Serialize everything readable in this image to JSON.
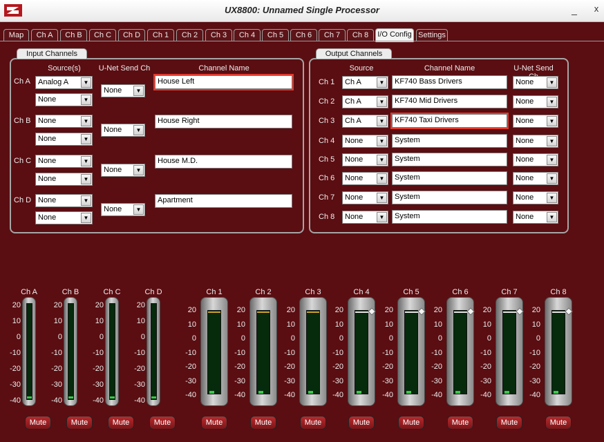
{
  "window": {
    "title": "UX8800: Unnamed Single Processor",
    "minimize": "_",
    "close": "x"
  },
  "tabs": [
    "Map",
    "Ch A",
    "Ch B",
    "Ch C",
    "Ch D",
    "Ch 1",
    "Ch 2",
    "Ch 3",
    "Ch 4",
    "Ch 5",
    "Ch 6",
    "Ch 7",
    "Ch 8",
    "I/O Config",
    "Settings"
  ],
  "active_tab": "I/O Config",
  "input_channels": {
    "label": "Input Channels",
    "headers": {
      "sources": "Source(s)",
      "unet": "U-Net Send Ch",
      "name": "Channel Name"
    },
    "rows": [
      {
        "ch": "Ch A",
        "source1": "Analog A",
        "source2": "None",
        "unet": "None",
        "name": "House Left"
      },
      {
        "ch": "Ch B",
        "source1": "None",
        "source2": "None",
        "unet": "None",
        "name": "House Right"
      },
      {
        "ch": "Ch C",
        "source1": "None",
        "source2": "None",
        "unet": "None",
        "name": "House M.D."
      },
      {
        "ch": "Ch D",
        "source1": "None",
        "source2": "None",
        "unet": "None",
        "name": "Apartment"
      }
    ]
  },
  "output_channels": {
    "label": "Output Channels",
    "headers": {
      "source": "Source",
      "name": "Channel Name",
      "unet": "U-Net Send Ch"
    },
    "rows": [
      {
        "ch": "Ch 1",
        "source": "Ch A",
        "name": "KF740 Bass Drivers",
        "unet": "None"
      },
      {
        "ch": "Ch 2",
        "source": "Ch A",
        "name": "KF740 Mid Drivers",
        "unet": "None"
      },
      {
        "ch": "Ch 3",
        "source": "Ch A",
        "name": "KF740 Taxi Drivers",
        "unet": "None"
      },
      {
        "ch": "Ch 4",
        "source": "None",
        "name": "System",
        "unet": "None"
      },
      {
        "ch": "Ch 5",
        "source": "None",
        "name": "System",
        "unet": "None"
      },
      {
        "ch": "Ch 6",
        "source": "None",
        "name": "System",
        "unet": "None"
      },
      {
        "ch": "Ch 7",
        "source": "None",
        "name": "System",
        "unet": "None"
      },
      {
        "ch": "Ch 8",
        "source": "None",
        "name": "System",
        "unet": "None"
      }
    ]
  },
  "meters": {
    "scale": [
      "20",
      "10",
      "0",
      "-10",
      "-20",
      "-30",
      "-40"
    ],
    "mute_label": "Mute",
    "inputs": [
      "Ch A",
      "Ch B",
      "Ch C",
      "Ch D"
    ],
    "outputs": [
      {
        "name": "Ch 1",
        "limit_marker": false
      },
      {
        "name": "Ch 2",
        "limit_marker": false
      },
      {
        "name": "Ch 3",
        "limit_marker": false
      },
      {
        "name": "Ch 4",
        "limit_marker": true
      },
      {
        "name": "Ch 5",
        "limit_marker": true
      },
      {
        "name": "Ch 6",
        "limit_marker": true
      },
      {
        "name": "Ch 7",
        "limit_marker": true
      },
      {
        "name": "Ch 8",
        "limit_marker": true
      }
    ]
  },
  "colors": {
    "background": "#5a0e12",
    "highlight": "#e03a2e",
    "led": "#3ac84a"
  }
}
